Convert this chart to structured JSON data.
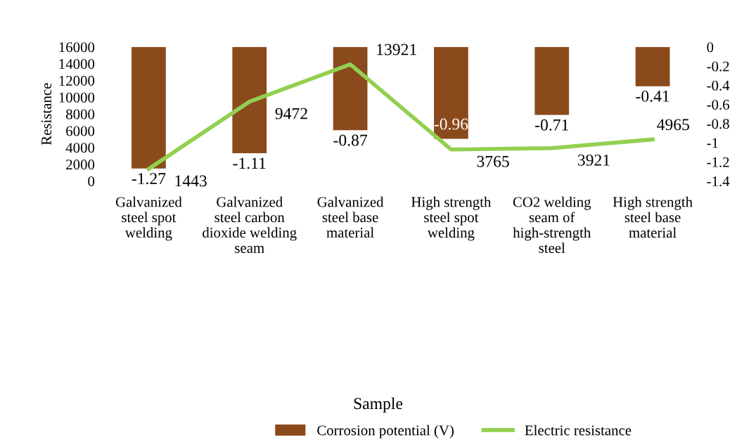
{
  "chart_data": {
    "type": "bar",
    "annotations": [
      "Sample"
    ],
    "ylabel": "Resistance",
    "categories": [
      "Galvanized steel spot welding",
      "Galvanized steel carbon dioxide welding seam",
      "Galvanized steel base material",
      "High strength steel spot welding",
      "CO2 welding seam of high-strength steel",
      "High strength steel base material"
    ],
    "series": [
      {
        "name": "Corrosion potential (V)",
        "axis": "y2",
        "color": "#8b4a1c",
        "values": [
          -1.27,
          -1.11,
          -0.87,
          -0.96,
          -0.71,
          -0.41
        ]
      },
      {
        "name": "Electric resistance",
        "type": "line",
        "color": "#92d050",
        "values": [
          1443,
          9472,
          13921,
          3765,
          3921,
          4965
        ]
      }
    ],
    "ylim": [
      0,
      16000
    ],
    "yticks": [
      0,
      2000,
      4000,
      6000,
      8000,
      10000,
      12000,
      14000,
      16000
    ],
    "y2lim": [
      -1.4,
      0
    ],
    "y2ticks": [
      {
        "value": 0,
        "label": "0"
      },
      -0.2,
      -0.4,
      -0.6,
      -0.8,
      {
        "value": -1,
        "label": "-1"
      },
      -1.2,
      -1.4
    ],
    "data_labels": true,
    "grid": false,
    "legend": "bottom",
    "marker": "none",
    "line_style": "solid"
  }
}
